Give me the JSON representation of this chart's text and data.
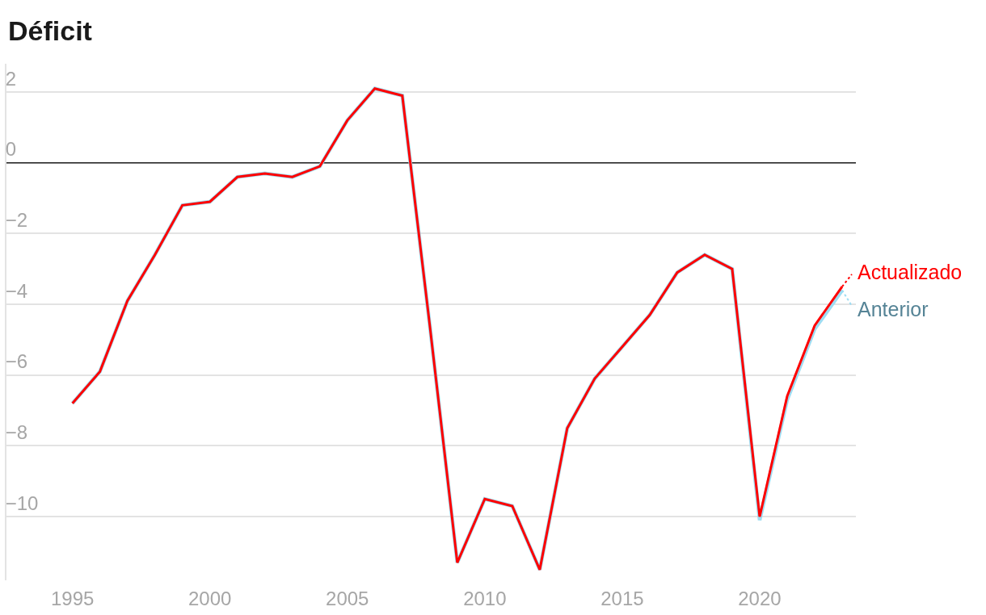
{
  "chart_data": {
    "type": "line",
    "title": "Déficit",
    "x": [
      1995,
      1996,
      1997,
      1998,
      1999,
      2000,
      2001,
      2002,
      2003,
      2004,
      2005,
      2006,
      2007,
      2008,
      2009,
      2010,
      2011,
      2012,
      2013,
      2014,
      2015,
      2016,
      2017,
      2018,
      2019,
      2020,
      2021,
      2022,
      2023
    ],
    "series": [
      {
        "name": "Anterior",
        "color": "#9edcf2",
        "values": [
          -6.8,
          -5.9,
          -3.9,
          -2.6,
          -1.2,
          -1.1,
          -0.4,
          -0.3,
          -0.4,
          -0.1,
          1.2,
          2.1,
          1.9,
          -4.6,
          -11.3,
          -9.5,
          -9.7,
          -11.5,
          -7.5,
          -6.1,
          -5.2,
          -4.3,
          -3.1,
          -2.6,
          -3.0,
          -10.1,
          -6.7,
          -4.7,
          -3.6
        ]
      },
      {
        "name": "Actualizado",
        "color": "#ff0000",
        "values": [
          -6.8,
          -5.9,
          -3.9,
          -2.6,
          -1.2,
          -1.1,
          -0.4,
          -0.3,
          -0.4,
          -0.1,
          1.2,
          2.1,
          1.9,
          -4.6,
          -11.3,
          -9.5,
          -9.7,
          -11.5,
          -7.5,
          -6.1,
          -5.2,
          -4.3,
          -3.1,
          -2.6,
          -3.0,
          -10.0,
          -6.6,
          -4.6,
          -3.5
        ]
      }
    ],
    "xlim": [
      1992.6,
      2023.5
    ],
    "xticks": [
      1995,
      2000,
      2005,
      2010,
      2015,
      2020
    ],
    "ylim": [
      -11.8,
      2.8
    ],
    "yticks": [
      2,
      0,
      {
        "value": -2,
        "label": "−2"
      },
      {
        "value": -4,
        "label": "−4"
      },
      {
        "value": -6,
        "label": "−6"
      },
      {
        "value": -8,
        "label": "−8"
      },
      {
        "value": -10,
        "label": "−10"
      }
    ],
    "ref_lines": [
      {
        "axis": "y",
        "value": 0,
        "color": "#222222"
      }
    ],
    "grid": "y",
    "legend": "right"
  }
}
